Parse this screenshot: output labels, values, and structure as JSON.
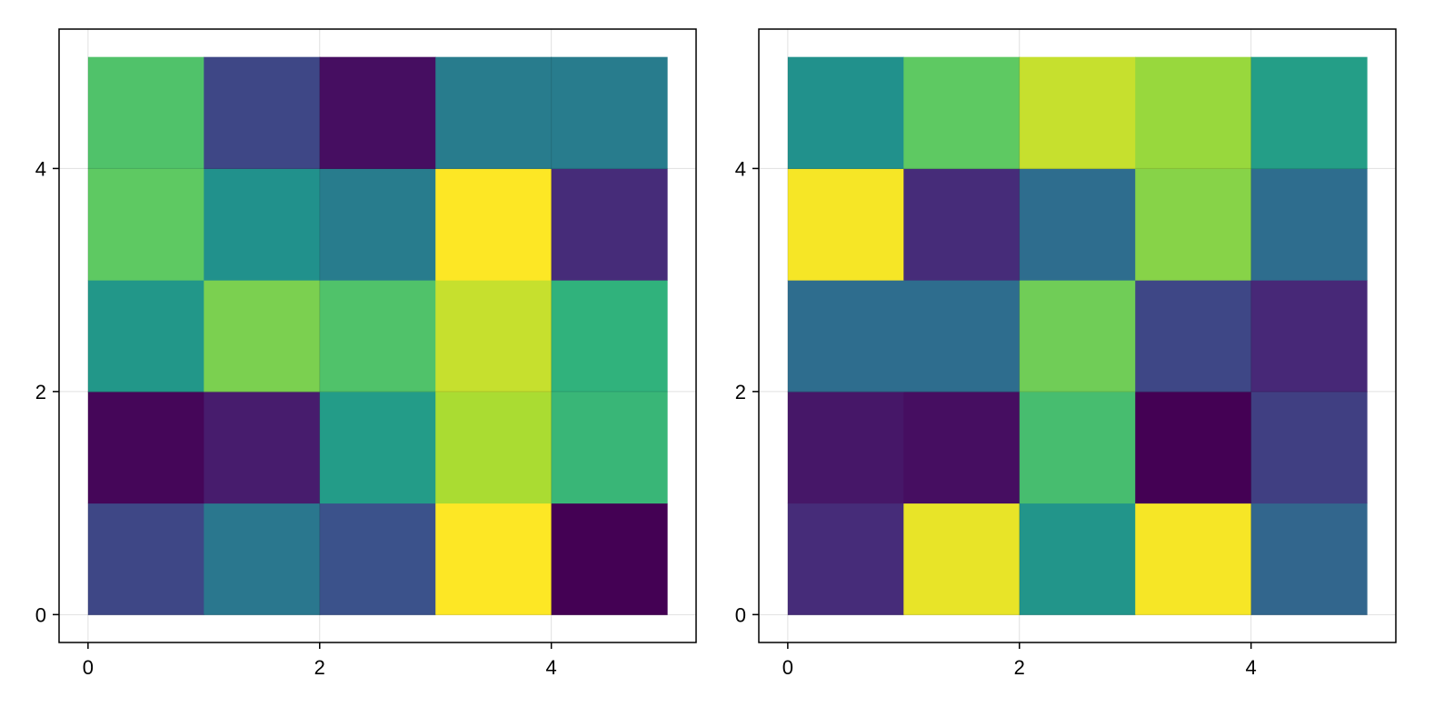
{
  "chart_data": [
    {
      "type": "heatmap",
      "title": "",
      "xlabel": "",
      "ylabel": "",
      "xlim": [
        -0.25,
        5.25
      ],
      "ylim": [
        -0.25,
        5.25
      ],
      "xticks": [
        0,
        2,
        4
      ],
      "yticks": [
        0,
        2,
        4
      ],
      "xtick_labels": [
        "0",
        "2",
        "4"
      ],
      "ytick_labels": [
        "0",
        "2",
        "4"
      ],
      "grid": true,
      "colormap": "viridis",
      "x_edges": [
        0,
        1,
        2,
        3,
        4,
        5
      ],
      "y_edges": [
        0,
        1,
        2,
        3,
        4,
        5
      ],
      "cells": [
        [
          0.22,
          0.4,
          0.25,
          1.0,
          0.0
        ],
        [
          0.02,
          0.1,
          0.55,
          0.88,
          0.67
        ],
        [
          0.53,
          0.8,
          0.72,
          0.92,
          0.65
        ],
        [
          0.75,
          0.5,
          0.42,
          1.0,
          0.15
        ],
        [
          0.72,
          0.22,
          0.05,
          0.42,
          0.42
        ]
      ]
    },
    {
      "type": "heatmap",
      "title": "",
      "xlabel": "",
      "ylabel": "",
      "xlim": [
        -0.25,
        5.25
      ],
      "ylim": [
        -0.25,
        5.25
      ],
      "xticks": [
        0,
        2,
        4
      ],
      "yticks": [
        0,
        2,
        4
      ],
      "xtick_labels": [
        "0",
        "2",
        "4"
      ],
      "ytick_labels": [
        "0",
        "2",
        "4"
      ],
      "grid": true,
      "colormap": "viridis",
      "x_edges": [
        0,
        1,
        2,
        3,
        4,
        5
      ],
      "y_edges": [
        0,
        1,
        2,
        3,
        4,
        5
      ],
      "cells": [
        [
          0.15,
          0.97,
          0.52,
          0.99,
          0.33
        ],
        [
          0.08,
          0.05,
          0.7,
          0.0,
          0.2
        ],
        [
          0.36,
          0.36,
          0.78,
          0.22,
          0.14
        ],
        [
          0.99,
          0.15,
          0.36,
          0.82,
          0.36
        ],
        [
          0.5,
          0.75,
          0.92,
          0.85,
          0.56
        ]
      ]
    }
  ]
}
